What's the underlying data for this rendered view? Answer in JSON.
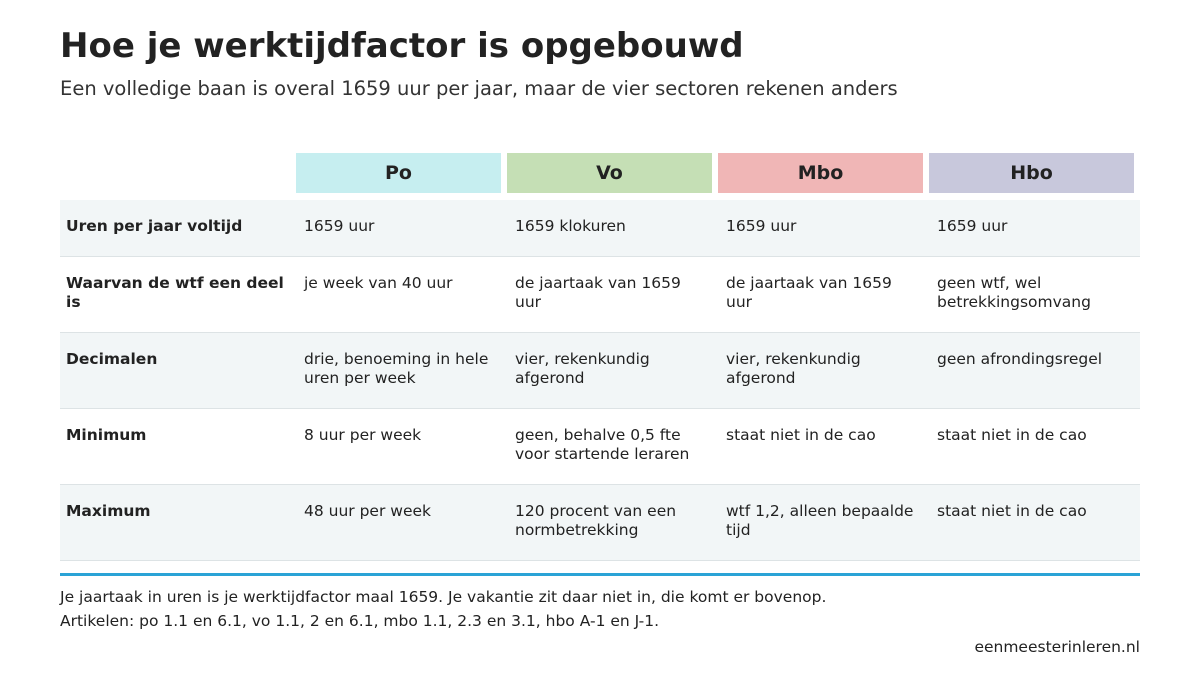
{
  "header": {
    "title": "Hoe je werktijdfactor is opgebouwd",
    "subtitle": "Een volledige baan is overal 1659 uur per jaar, maar de vier sectoren rekenen anders"
  },
  "table": {
    "columns": [
      "Po",
      "Vo",
      "Mbo",
      "Hbo"
    ],
    "rows": [
      [
        "Uren per jaar voltijd",
        "1659 uur",
        "1659 klokuren",
        "1659 uur",
        "1659 uur"
      ],
      [
        "Waarvan de wtf een deel is",
        "je week van 40 uur",
        "de jaartaak van 1659 uur",
        "de jaartaak van 1659 uur",
        "geen wtf, wel betrekkingsomvang"
      ],
      [
        "Decimalen",
        "drie, benoeming in hele uren per week",
        "vier, rekenkundig afgerond",
        "vier, rekenkundig afgerond",
        "geen afrondingsregel"
      ],
      [
        "Minimum",
        "8 uur per week",
        "geen, behalve 0,5 fte voor startende leraren",
        "staat niet in de cao",
        "staat niet in de cao"
      ],
      [
        "Maximum",
        "48 uur per week",
        "120 procent van een normbetrekking",
        "wtf 1,2, alleen bepaalde tijd",
        "staat niet in de cao"
      ]
    ]
  },
  "footer": {
    "notes": [
      "Je jaartaak in uren is je werktijdfactor maal 1659. Je vakantie zit daar niet in, die komt er bovenop.",
      "Artikelen: po 1.1 en 6.1, vo 1.1, 2 en 6.1, mbo 1.1, 2.3 en 3.1, hbo A-1 en J-1."
    ],
    "source": "eenmeesterinleren.nl"
  }
}
